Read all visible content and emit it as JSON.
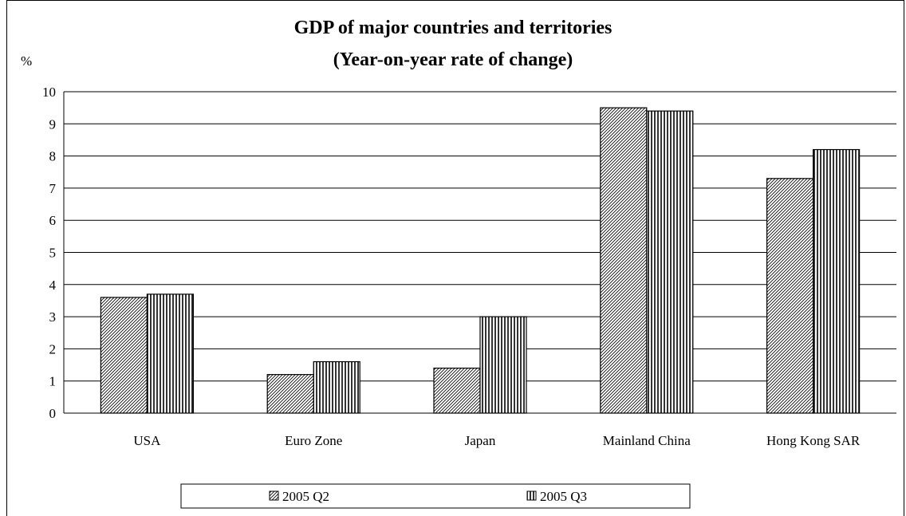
{
  "chart_data": {
    "type": "bar",
    "title": "GDP of major countries and territories",
    "subtitle": "(Year-on-year rate of change)",
    "ylabel": "%",
    "xlabel": "",
    "categories": [
      "USA",
      "Euro Zone",
      "Japan",
      "Mainland China",
      "Hong Kong SAR"
    ],
    "series": [
      {
        "name": "2005 Q2",
        "values": [
          3.6,
          1.2,
          1.4,
          9.5,
          7.3
        ],
        "pattern": "diagonal-hatch"
      },
      {
        "name": "2005 Q3",
        "values": [
          3.7,
          1.6,
          3.0,
          9.4,
          8.2
        ],
        "pattern": "vertical-lines"
      }
    ],
    "ylim": [
      0,
      10
    ],
    "yticks": [
      "0",
      "1",
      "2",
      "3",
      "4",
      "5",
      "6",
      "7",
      "8",
      "9",
      "10"
    ],
    "grid": true,
    "legend_position": "bottom"
  }
}
